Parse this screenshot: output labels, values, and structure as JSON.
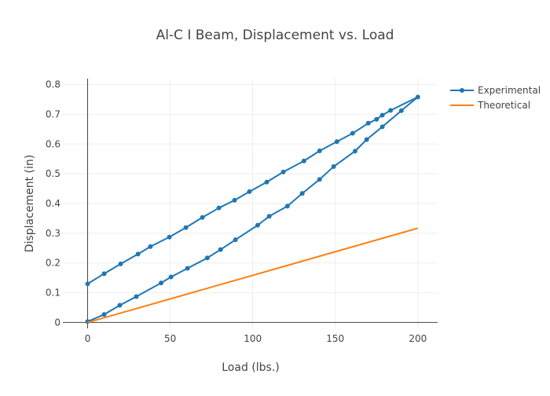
{
  "chart_data": {
    "type": "line",
    "title": "Al-C I Beam, Displacement vs. Load",
    "xlabel": "Load (lbs.)",
    "ylabel": "Displacement (in)",
    "xlim": [
      -15,
      212
    ],
    "ylim": [
      -0.02,
      0.82
    ],
    "xticks": [
      0,
      50,
      100,
      150,
      200
    ],
    "yticks": [
      0,
      0.1,
      0.2,
      0.3,
      0.4,
      0.5,
      0.6,
      0.7,
      0.8
    ],
    "grid": true,
    "legend_position": "top-right",
    "series": [
      {
        "name": "Experimental",
        "color": "#1f77b4",
        "markers": true,
        "x": [
          0,
          10,
          19.5,
          29.5,
          44.5,
          50.5,
          60.5,
          72.5,
          80.5,
          89.5,
          103,
          110,
          121,
          130,
          140.5,
          149,
          162,
          169,
          178.5,
          190,
          200,
          183.5,
          178.5,
          175,
          170,
          160.5,
          151,
          140.5,
          131,
          118.5,
          108.5,
          98,
          89,
          79.5,
          69.5,
          59.5,
          49.5,
          38,
          30.5,
          20,
          10,
          0
        ],
        "y": [
          0.003,
          0.027,
          0.058,
          0.087,
          0.133,
          0.153,
          0.182,
          0.217,
          0.245,
          0.278,
          0.327,
          0.357,
          0.391,
          0.434,
          0.481,
          0.524,
          0.576,
          0.615,
          0.658,
          0.712,
          0.758,
          0.713,
          0.697,
          0.683,
          0.67,
          0.636,
          0.608,
          0.577,
          0.543,
          0.506,
          0.472,
          0.44,
          0.411,
          0.385,
          0.353,
          0.319,
          0.287,
          0.255,
          0.23,
          0.197,
          0.164,
          0.13
        ]
      },
      {
        "name": "Theoretical",
        "color": "#ff7f0e",
        "markers": false,
        "x": [
          0,
          200
        ],
        "y": [
          0,
          0.317
        ]
      }
    ]
  }
}
